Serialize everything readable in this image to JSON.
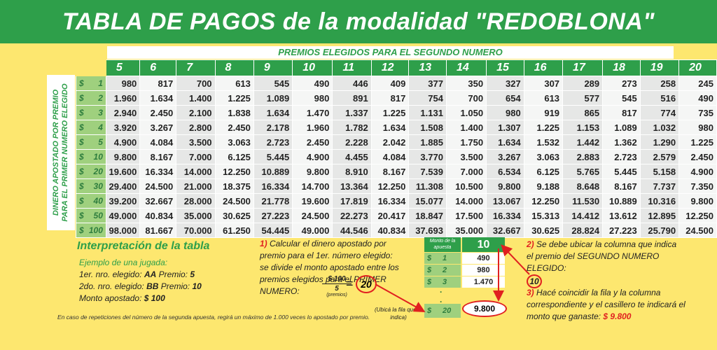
{
  "title": "TABLA DE PAGOS de la modalidad \"REDOBLONA\"",
  "subheader": "PREMIOS ELEGIDOS PARA EL SEGUNDO NUMERO",
  "vertical_label_1": "DINERO APOSTADO POR PREMIO",
  "vertical_label_2": "PARA EL PRIMER NUMERO ELEGIDO",
  "currency": "$",
  "columns": [
    "5",
    "6",
    "7",
    "8",
    "9",
    "10",
    "11",
    "12",
    "13",
    "14",
    "15",
    "16",
    "17",
    "18",
    "19",
    "20"
  ],
  "rows": [
    {
      "bet": "1",
      "values": [
        "980",
        "817",
        "700",
        "613",
        "545",
        "490",
        "446",
        "409",
        "377",
        "350",
        "327",
        "307",
        "289",
        "273",
        "258",
        "245"
      ]
    },
    {
      "bet": "2",
      "values": [
        "1.960",
        "1.634",
        "1.400",
        "1.225",
        "1.089",
        "980",
        "891",
        "817",
        "754",
        "700",
        "654",
        "613",
        "577",
        "545",
        "516",
        "490"
      ]
    },
    {
      "bet": "3",
      "values": [
        "2.940",
        "2.450",
        "2.100",
        "1.838",
        "1.634",
        "1.470",
        "1.337",
        "1.225",
        "1.131",
        "1.050",
        "980",
        "919",
        "865",
        "817",
        "774",
        "735"
      ]
    },
    {
      "bet": "4",
      "values": [
        "3.920",
        "3.267",
        "2.800",
        "2.450",
        "2.178",
        "1.960",
        "1.782",
        "1.634",
        "1.508",
        "1.400",
        "1.307",
        "1.225",
        "1.153",
        "1.089",
        "1.032",
        "980"
      ]
    },
    {
      "bet": "5",
      "values": [
        "4.900",
        "4.084",
        "3.500",
        "3.063",
        "2.723",
        "2.450",
        "2.228",
        "2.042",
        "1.885",
        "1.750",
        "1.634",
        "1.532",
        "1.442",
        "1.362",
        "1.290",
        "1.225"
      ]
    },
    {
      "bet": "10",
      "values": [
        "9.800",
        "8.167",
        "7.000",
        "6.125",
        "5.445",
        "4.900",
        "4.455",
        "4.084",
        "3.770",
        "3.500",
        "3.267",
        "3.063",
        "2.883",
        "2.723",
        "2.579",
        "2.450"
      ]
    },
    {
      "bet": "20",
      "values": [
        "19.600",
        "16.334",
        "14.000",
        "12.250",
        "10.889",
        "9.800",
        "8.910",
        "8.167",
        "7.539",
        "7.000",
        "6.534",
        "6.125",
        "5.765",
        "5.445",
        "5.158",
        "4.900"
      ]
    },
    {
      "bet": "30",
      "values": [
        "29.400",
        "24.500",
        "21.000",
        "18.375",
        "16.334",
        "14.700",
        "13.364",
        "12.250",
        "11.308",
        "10.500",
        "9.800",
        "9.188",
        "8.648",
        "8.167",
        "7.737",
        "7.350"
      ]
    },
    {
      "bet": "40",
      "values": [
        "39.200",
        "32.667",
        "28.000",
        "24.500",
        "21.778",
        "19.600",
        "17.819",
        "16.334",
        "15.077",
        "14.000",
        "13.067",
        "12.250",
        "11.530",
        "10.889",
        "10.316",
        "9.800"
      ]
    },
    {
      "bet": "50",
      "values": [
        "49.000",
        "40.834",
        "35.000",
        "30.625",
        "27.223",
        "24.500",
        "22.273",
        "20.417",
        "18.847",
        "17.500",
        "16.334",
        "15.313",
        "14.412",
        "13.612",
        "12.895",
        "12.250"
      ]
    },
    {
      "bet": "100",
      "values": [
        "98.000",
        "81.667",
        "70.000",
        "61.250",
        "54.445",
        "49.000",
        "44.546",
        "40.834",
        "37.693",
        "35.000",
        "32.667",
        "30.625",
        "28.824",
        "27.223",
        "25.790",
        "24.500"
      ]
    }
  ],
  "interpretation": {
    "title": "Interpretación de la tabla",
    "example_title": "Ejemplo de una jugada:",
    "line1_label": "1er. nro. elegido:",
    "line1_value": "AA",
    "line1_premio_label": "Premio:",
    "line1_premio": "5",
    "line2_label": "2do. nro. elegido:",
    "line2_value": "BB",
    "line2_premio_label": "Premio:",
    "line2_premio": "10",
    "line3_label": "Monto apostado:",
    "line3_value": "$ 100"
  },
  "footnote": "En caso de repeticiones del número de la segunda apuesta, regirá un máximo de 1.000 veces lo apostado por premio.",
  "step1": {
    "num": "1)",
    "text": "Calcular el dinero apostado por premio para el 1er. número elegido: se divide el monto apostado entre los premios elegidos para el PRIMER NUMERO:",
    "frac_top": "$ 100",
    "frac_bottom": "5",
    "frac_note": "(premios)",
    "equals": "=",
    "result": "20",
    "ubica": "(Ubicá la fila que lo indica)"
  },
  "mini_table": {
    "header": "Monto de la apuesta",
    "column": "10",
    "rows": [
      {
        "bet": "1",
        "value": "490"
      },
      {
        "bet": "2",
        "value": "980"
      },
      {
        "bet": "3",
        "value": "1.470"
      }
    ],
    "dots": [
      ".",
      "."
    ],
    "last_bet": "20",
    "last_value": "9.800"
  },
  "step2": {
    "num": "2)",
    "text": "Se debe ubicar la columna que indica el premio del SEGUNDO NUMERO ELEGIDO:",
    "circled": "10"
  },
  "step3": {
    "num": "3)",
    "text": "Hacé coincidir la fila y la columna correspondiente y el casillero te indicará el monto que ganaste:",
    "amount": "$ 9.800"
  },
  "colors": {
    "green": "#2e9f4a",
    "light_green": "#9fd07e",
    "background": "#fde76f",
    "red": "#e02020"
  }
}
